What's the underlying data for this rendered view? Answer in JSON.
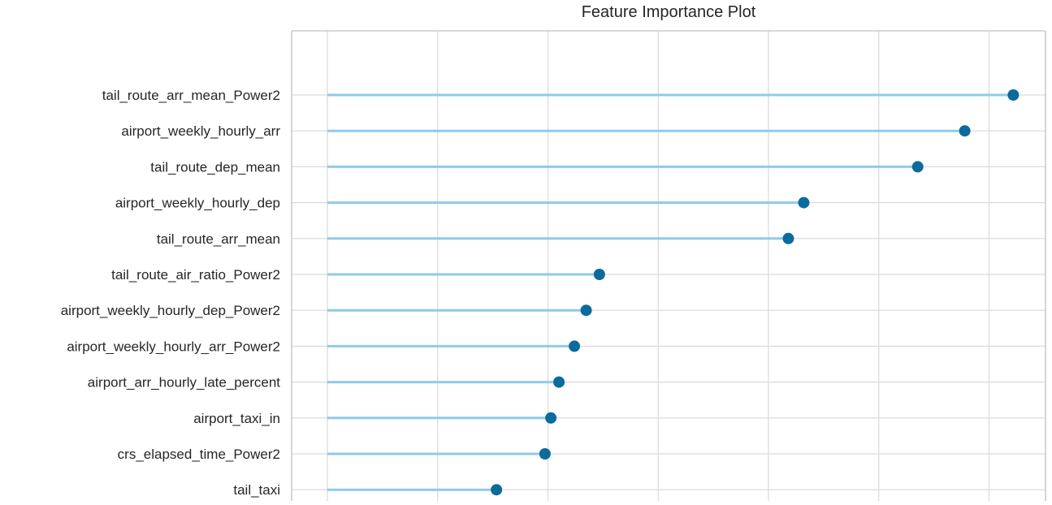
{
  "chart_data": {
    "type": "lollipop",
    "title": "Feature Importance Plot",
    "xlabel": "",
    "ylabel": "",
    "xlim": [
      0,
      1
    ],
    "x_gridlines": [
      0.0,
      0.15,
      0.3,
      0.45,
      0.6,
      0.75,
      0.9
    ],
    "grid": true,
    "categories": [
      "tail_route_arr_mean_Power2",
      "airport_weekly_hourly_arr",
      "tail_route_dep_mean",
      "airport_weekly_hourly_dep",
      "tail_route_arr_mean",
      "tail_route_air_ratio_Power2",
      "airport_weekly_hourly_dep_Power2",
      "airport_weekly_hourly_arr_Power2",
      "airport_arr_hourly_late_percent",
      "airport_taxi_in",
      "crs_elapsed_time_Power2",
      "tail_taxi"
    ],
    "values": [
      0.933,
      0.867,
      0.803,
      0.648,
      0.627,
      0.37,
      0.352,
      0.336,
      0.315,
      0.304,
      0.296,
      0.23
    ],
    "colors": {
      "stem": "#8dcbec",
      "marker": "#0b6b9c",
      "grid": "#d9d9d9",
      "frame": "#cccccc",
      "text": "#262626"
    }
  }
}
